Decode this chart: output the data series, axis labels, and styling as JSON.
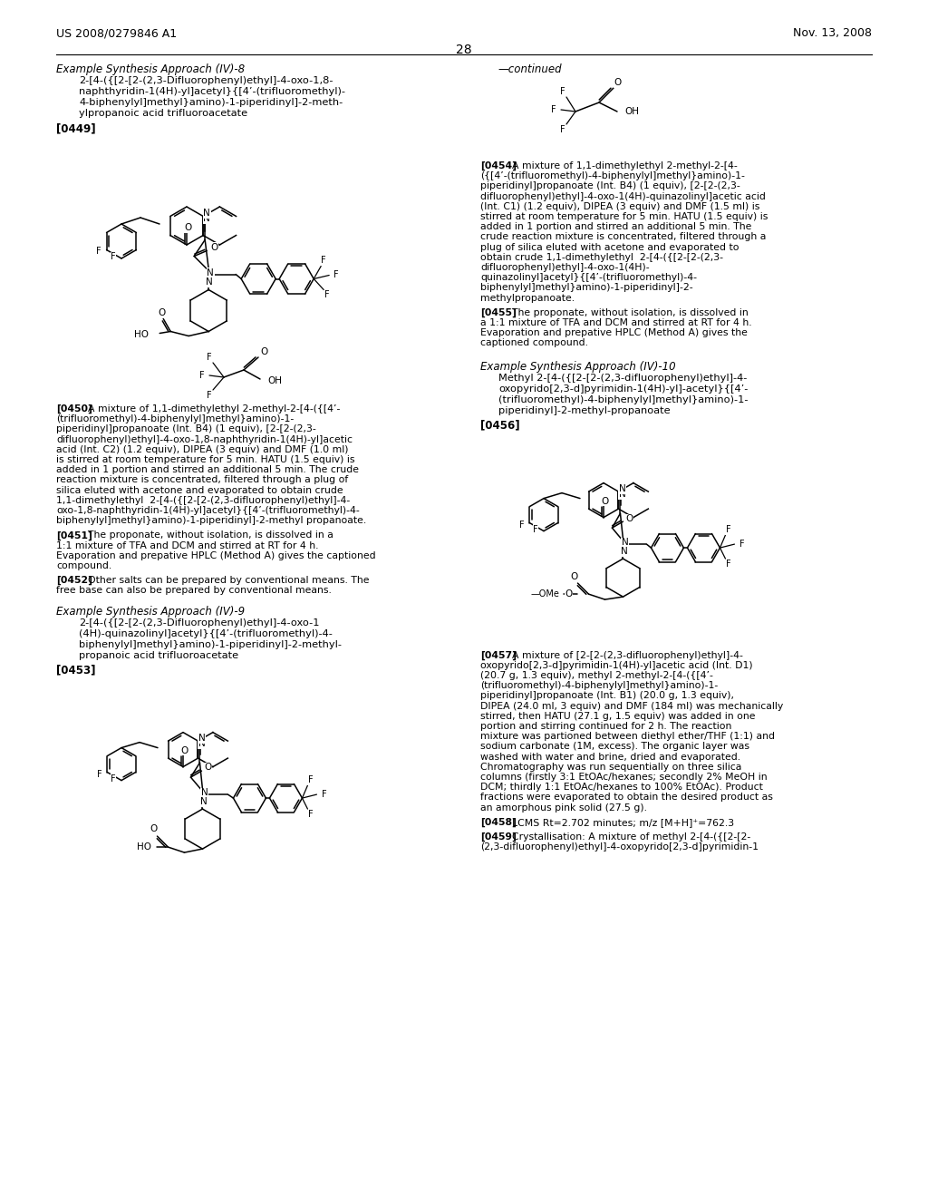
{
  "page_number": "28",
  "header_left": "US 2008/0279846 A1",
  "header_right": "Nov. 13, 2008",
  "bg": "#ffffff",
  "fg": "#000000"
}
